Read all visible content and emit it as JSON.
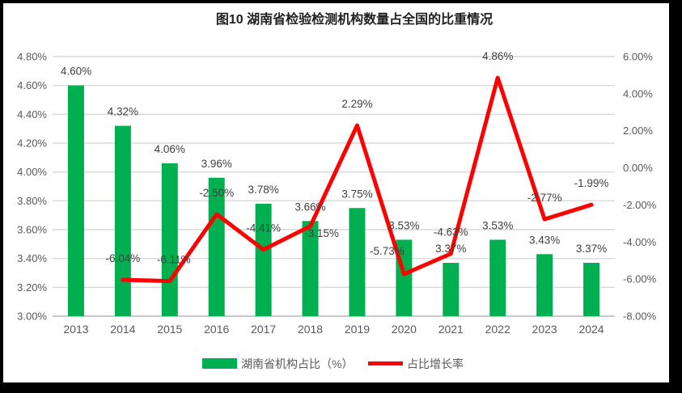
{
  "title": "图10  湖南省检验检测机构数量占全国的比重情况",
  "chart_data": {
    "type": "bar+line",
    "categories": [
      "2013",
      "2014",
      "2015",
      "2016",
      "2017",
      "2018",
      "2019",
      "2020",
      "2021",
      "2022",
      "2023",
      "2024"
    ],
    "series": [
      {
        "name": "湖南省机构占比（%）",
        "type": "bar",
        "axis": "left",
        "color": "#00B050",
        "values": [
          4.6,
          4.32,
          4.06,
          3.96,
          3.78,
          3.66,
          3.75,
          3.53,
          3.37,
          3.53,
          3.43,
          3.37
        ],
        "labels": [
          "4.60%",
          "4.32%",
          "4.06%",
          "3.96%",
          "3.78%",
          "3.66%",
          "3.75%",
          "3.53%",
          "3.37%",
          "3.53%",
          "3.43%",
          "3.37%"
        ]
      },
      {
        "name": "占比增长率",
        "type": "line",
        "axis": "right",
        "color": "#FF0000",
        "values": [
          null,
          -6.04,
          -6.11,
          -2.5,
          -4.41,
          -3.15,
          2.29,
          -5.73,
          -4.63,
          4.86,
          -2.77,
          -1.99
        ],
        "labels": [
          null,
          "-6.04%",
          "-6.11%",
          "-2.50%",
          "-4.41%",
          "-3.15%",
          "2.29%",
          "-5.73%",
          "-4.63%",
          "4.86%",
          "-2.77%",
          "-1.99%"
        ]
      }
    ],
    "left_axis": {
      "min": 3.0,
      "max": 4.8,
      "ticks": [
        "4.80%",
        "4.60%",
        "4.40%",
        "4.20%",
        "4.00%",
        "3.80%",
        "3.60%",
        "3.40%",
        "3.20%",
        "3.00%"
      ]
    },
    "right_axis": {
      "min": -8.0,
      "max": 6.0,
      "ticks": [
        "6.00%",
        "4.00%",
        "2.00%",
        "0.00%",
        "-2.00%",
        "-4.00%",
        "-6.00%",
        "-8.00%"
      ]
    },
    "grid": true,
    "legend_position": "bottom",
    "label_offsets": {
      "2": [
        5,
        0
      ],
      "5": [
        14,
        35
      ],
      "7": [
        -21,
        -2
      ]
    }
  },
  "colors": {
    "bar": "#00B050",
    "line": "#FF0000",
    "grid": "#D9D9D9",
    "axis_line": "#C8C8C8",
    "axis_text": "#595959",
    "data_label": "#404040",
    "frame": "#000000",
    "background": "#FFFFFF"
  }
}
